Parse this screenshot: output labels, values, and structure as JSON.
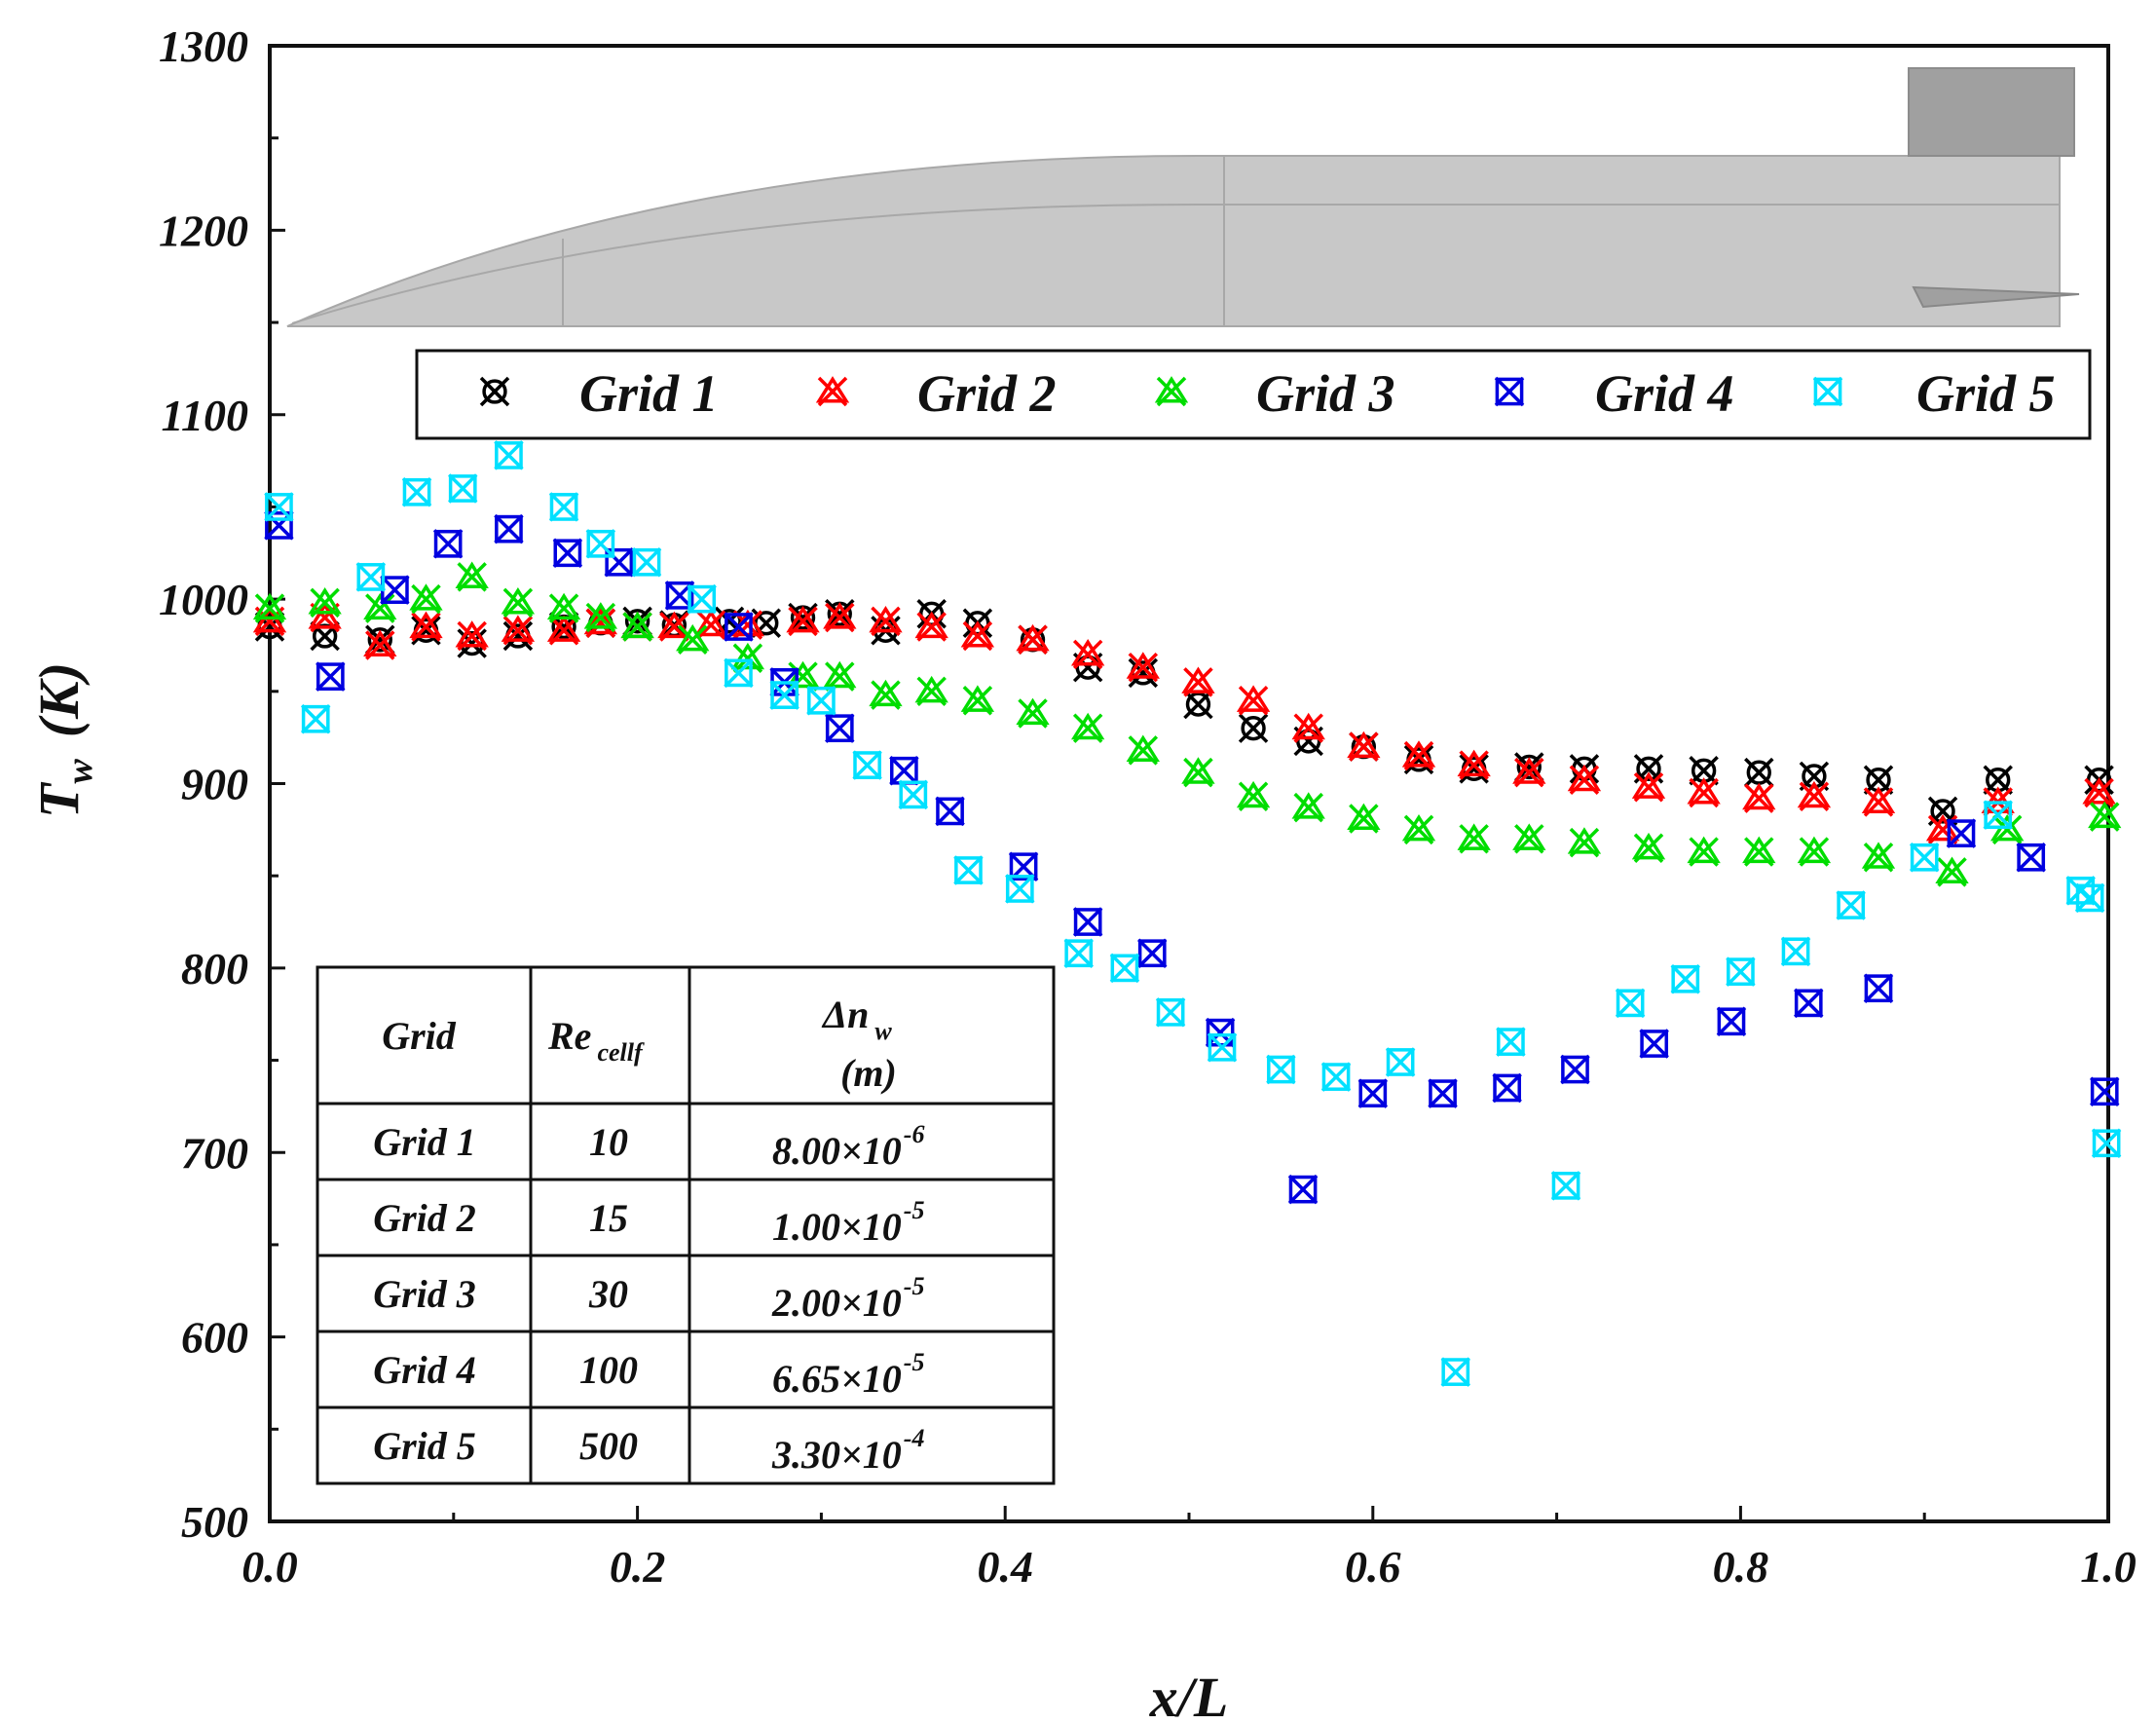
{
  "colors": {
    "grid1": "#000000",
    "grid2": "#ff0000",
    "grid3": "#00dd00",
    "grid4": "#0000e0",
    "grid5": "#00e0ff",
    "inset_body": "#c8c8c8",
    "inset_edge": "#a8a8a8",
    "inset_fin": "#a0a0a0"
  },
  "chart_data": {
    "type": "scatter",
    "title": "",
    "xlabel": "x/L",
    "ylabel_main": "T",
    "ylabel_sub": "w",
    "ylabel_unit": "(K)",
    "xlim": [
      0,
      1
    ],
    "ylim": [
      500,
      1300
    ],
    "x_ticks": [
      "0.0",
      "0.2",
      "0.4",
      "0.6",
      "0.8",
      "1.0"
    ],
    "y_ticks": [
      "500",
      "600",
      "700",
      "800",
      "900",
      "1000",
      "1100",
      "1200",
      "1300"
    ],
    "legend_position": "top",
    "series": [
      {
        "name": "Grid 1",
        "marker": "x-circle-dark",
        "points": [
          [
            0.0,
            985
          ],
          [
            0.03,
            980
          ],
          [
            0.06,
            978
          ],
          [
            0.085,
            983
          ],
          [
            0.11,
            976
          ],
          [
            0.135,
            980
          ],
          [
            0.16,
            985
          ],
          [
            0.18,
            987
          ],
          [
            0.2,
            988
          ],
          [
            0.22,
            986
          ],
          [
            0.25,
            988
          ],
          [
            0.27,
            987
          ],
          [
            0.29,
            990
          ],
          [
            0.31,
            992
          ],
          [
            0.335,
            983
          ],
          [
            0.36,
            992
          ],
          [
            0.385,
            987
          ],
          [
            0.415,
            978
          ],
          [
            0.445,
            963
          ],
          [
            0.475,
            960
          ],
          [
            0.505,
            943
          ],
          [
            0.535,
            930
          ],
          [
            0.565,
            923
          ],
          [
            0.595,
            920
          ],
          [
            0.625,
            913
          ],
          [
            0.655,
            908
          ],
          [
            0.685,
            909
          ],
          [
            0.715,
            908
          ],
          [
            0.75,
            908
          ],
          [
            0.78,
            907
          ],
          [
            0.81,
            906
          ],
          [
            0.84,
            904
          ],
          [
            0.875,
            902
          ],
          [
            0.91,
            885
          ],
          [
            0.94,
            902
          ],
          [
            0.995,
            902
          ]
        ]
      },
      {
        "name": "Grid 2",
        "marker": "x-triangle",
        "points": [
          [
            0.0,
            988
          ],
          [
            0.03,
            990
          ],
          [
            0.06,
            975
          ],
          [
            0.085,
            985
          ],
          [
            0.11,
            980
          ],
          [
            0.135,
            983
          ],
          [
            0.16,
            983
          ],
          [
            0.18,
            987
          ],
          [
            0.2,
            985
          ],
          [
            0.22,
            985
          ],
          [
            0.24,
            986
          ],
          [
            0.26,
            986
          ],
          [
            0.29,
            988
          ],
          [
            0.31,
            990
          ],
          [
            0.335,
            988
          ],
          [
            0.36,
            985
          ],
          [
            0.385,
            980
          ],
          [
            0.415,
            978
          ],
          [
            0.445,
            970
          ],
          [
            0.475,
            963
          ],
          [
            0.505,
            955
          ],
          [
            0.535,
            945
          ],
          [
            0.565,
            930
          ],
          [
            0.595,
            920
          ],
          [
            0.625,
            915
          ],
          [
            0.655,
            910
          ],
          [
            0.685,
            906
          ],
          [
            0.715,
            902
          ],
          [
            0.75,
            898
          ],
          [
            0.78,
            895
          ],
          [
            0.81,
            892
          ],
          [
            0.84,
            893
          ],
          [
            0.875,
            890
          ],
          [
            0.91,
            875
          ],
          [
            0.94,
            890
          ],
          [
            0.995,
            895
          ]
        ]
      },
      {
        "name": "Grid 3",
        "marker": "x-triangle",
        "points": [
          [
            0.0,
            995
          ],
          [
            0.03,
            998
          ],
          [
            0.06,
            995
          ],
          [
            0.085,
            1000
          ],
          [
            0.11,
            1012
          ],
          [
            0.135,
            998
          ],
          [
            0.16,
            995
          ],
          [
            0.18,
            990
          ],
          [
            0.2,
            985
          ],
          [
            0.23,
            978
          ],
          [
            0.26,
            968
          ],
          [
            0.29,
            958
          ],
          [
            0.31,
            958
          ],
          [
            0.335,
            948
          ],
          [
            0.36,
            950
          ],
          [
            0.385,
            945
          ],
          [
            0.415,
            938
          ],
          [
            0.445,
            930
          ],
          [
            0.475,
            918
          ],
          [
            0.505,
            906
          ],
          [
            0.535,
            893
          ],
          [
            0.565,
            887
          ],
          [
            0.595,
            881
          ],
          [
            0.625,
            875
          ],
          [
            0.655,
            870
          ],
          [
            0.685,
            870
          ],
          [
            0.715,
            868
          ],
          [
            0.75,
            865
          ],
          [
            0.78,
            863
          ],
          [
            0.81,
            863
          ],
          [
            0.84,
            863
          ],
          [
            0.875,
            860
          ],
          [
            0.915,
            852
          ],
          [
            0.945,
            875
          ],
          [
            0.998,
            882
          ]
        ]
      },
      {
        "name": "Grid 4",
        "marker": "x-square",
        "points": [
          [
            0.005,
            1040
          ],
          [
            0.033,
            958
          ],
          [
            0.068,
            1005
          ],
          [
            0.097,
            1030
          ],
          [
            0.13,
            1038
          ],
          [
            0.162,
            1025
          ],
          [
            0.19,
            1020
          ],
          [
            0.223,
            1002
          ],
          [
            0.255,
            985
          ],
          [
            0.28,
            955
          ],
          [
            0.31,
            930
          ],
          [
            0.345,
            907
          ],
          [
            0.37,
            885
          ],
          [
            0.41,
            855
          ],
          [
            0.445,
            825
          ],
          [
            0.48,
            808
          ],
          [
            0.517,
            765
          ],
          [
            0.562,
            680
          ],
          [
            0.6,
            732
          ],
          [
            0.638,
            732
          ],
          [
            0.673,
            735
          ],
          [
            0.71,
            745
          ],
          [
            0.753,
            759
          ],
          [
            0.795,
            771
          ],
          [
            0.837,
            781
          ],
          [
            0.875,
            789
          ],
          [
            0.92,
            873
          ],
          [
            0.958,
            860
          ],
          [
            0.998,
            733
          ]
        ]
      },
      {
        "name": "Grid 5",
        "marker": "x-square",
        "points": [
          [
            0.005,
            1050
          ],
          [
            0.025,
            935
          ],
          [
            0.055,
            1012
          ],
          [
            0.08,
            1058
          ],
          [
            0.105,
            1060
          ],
          [
            0.13,
            1078
          ],
          [
            0.16,
            1050
          ],
          [
            0.18,
            1030
          ],
          [
            0.205,
            1020
          ],
          [
            0.235,
            1000
          ],
          [
            0.255,
            960
          ],
          [
            0.28,
            948
          ],
          [
            0.3,
            945
          ],
          [
            0.325,
            910
          ],
          [
            0.35,
            894
          ],
          [
            0.38,
            853
          ],
          [
            0.408,
            843
          ],
          [
            0.44,
            808
          ],
          [
            0.465,
            800
          ],
          [
            0.49,
            776
          ],
          [
            0.518,
            757
          ],
          [
            0.55,
            745
          ],
          [
            0.58,
            741
          ],
          [
            0.615,
            749
          ],
          [
            0.645,
            581
          ],
          [
            0.675,
            760
          ],
          [
            0.705,
            682
          ],
          [
            0.74,
            781
          ],
          [
            0.77,
            794
          ],
          [
            0.8,
            798
          ],
          [
            0.83,
            809
          ],
          [
            0.86,
            834
          ],
          [
            0.9,
            860
          ],
          [
            0.94,
            883
          ],
          [
            0.985,
            842
          ],
          [
            0.99,
            838
          ],
          [
            0.999,
            705
          ]
        ]
      }
    ],
    "legend": [
      "Grid 1",
      "Grid 2",
      "Grid 3",
      "Grid 4",
      "Grid 5"
    ],
    "inset_table": {
      "headers": {
        "grid": "Grid",
        "re_main": "Re",
        "re_sub": "cellf",
        "dn_main": "Δn",
        "dn_sub": "w",
        "dn_unit": "(m)"
      },
      "rows": [
        {
          "grid": "Grid 1",
          "re": "10",
          "mant": "8.00×10",
          "exp": "-6"
        },
        {
          "grid": "Grid 2",
          "re": "15",
          "mant": "1.00×10",
          "exp": "-5"
        },
        {
          "grid": "Grid 3",
          "re": "30",
          "mant": "2.00×10",
          "exp": "-5"
        },
        {
          "grid": "Grid 4",
          "re": "100",
          "mant": "6.65×10",
          "exp": "-5"
        },
        {
          "grid": "Grid 5",
          "re": "500",
          "mant": "3.30×10",
          "exp": "-4"
        }
      ]
    }
  }
}
